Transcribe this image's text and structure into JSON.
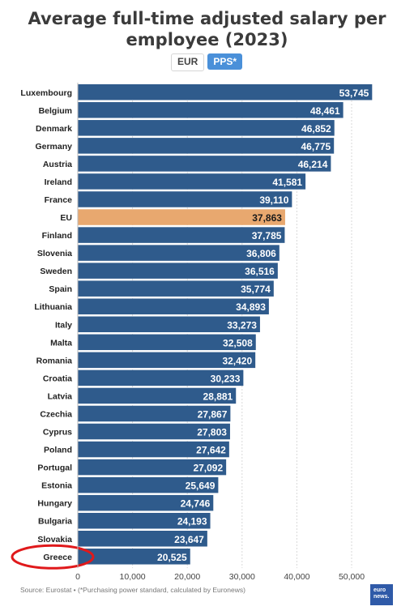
{
  "header": {
    "title_line1": "Average full-time adjusted salary per",
    "title_line2": "employee (2023)"
  },
  "toggle": {
    "eur_label": "EUR",
    "pps_label": "PPS*",
    "selected": "PPS*"
  },
  "source": "Source: Eurostat • (*Purchasing power standard, calculated by Euronews)",
  "logo": {
    "line1": "euro",
    "line2": "news."
  },
  "colors": {
    "bar": "#2f5b8c",
    "highlight": "#e8a86f",
    "grid": "#d9d9d9",
    "accent": "#4a90d9",
    "annotation": "#e0191b"
  },
  "chart_data": {
    "type": "bar",
    "orientation": "horizontal",
    "categories": [
      "Luxembourg",
      "Belgium",
      "Denmark",
      "Germany",
      "Austria",
      "Ireland",
      "France",
      "EU",
      "Finland",
      "Slovenia",
      "Sweden",
      "Spain",
      "Lithuania",
      "Italy",
      "Malta",
      "Romania",
      "Croatia",
      "Latvia",
      "Czechia",
      "Cyprus",
      "Poland",
      "Portugal",
      "Estonia",
      "Hungary",
      "Bulgaria",
      "Slovakia",
      "Greece"
    ],
    "values": [
      53745,
      48461,
      46852,
      46775,
      46214,
      41581,
      39110,
      37863,
      37785,
      36806,
      36516,
      35774,
      34893,
      33273,
      32508,
      32420,
      30233,
      28881,
      27867,
      27803,
      27642,
      27092,
      25649,
      24746,
      24193,
      23647,
      20525
    ],
    "value_labels": [
      "53,745",
      "48,461",
      "46,852",
      "46,775",
      "46,214",
      "41,581",
      "39,110",
      "37,863",
      "37,785",
      "36,806",
      "36,516",
      "35,774",
      "34,893",
      "33,273",
      "32,508",
      "32,420",
      "30,233",
      "28,881",
      "27,867",
      "27,803",
      "27,642",
      "27,092",
      "25,649",
      "24,746",
      "24,193",
      "23,647",
      "20,525"
    ],
    "highlight": "EU",
    "circled": "Greece",
    "xlim": [
      0,
      55000
    ],
    "xticks": [
      0,
      10000,
      20000,
      30000,
      40000,
      50000
    ],
    "xtick_labels": [
      "0",
      "10,000",
      "20,000",
      "30,000",
      "40,000",
      "50,000"
    ],
    "grid": true
  }
}
